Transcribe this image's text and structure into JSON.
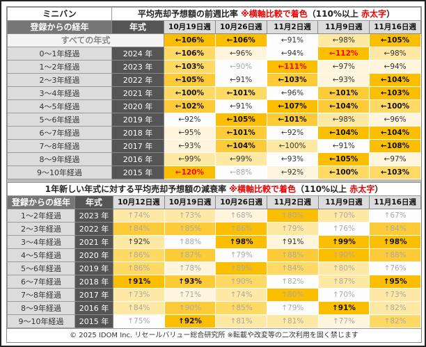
{
  "top": {
    "category": "ミニバン",
    "title": "平均売却予想額の前週比率 ",
    "note": "※横軸比較で着色",
    "paren_open": "（110%以上 ",
    "red_label": "赤太字",
    "paren_close": "）",
    "col_label": "登録からの経年",
    "col_year": "年式",
    "weeks": [
      "10月19日週",
      "10月26日週",
      "11月2日週",
      "11月9日週",
      "11月16日週"
    ],
    "all_label": "すべての年式",
    "all_cells": [
      {
        "v": "←106%",
        "l": 5,
        "s": "b"
      },
      {
        "v": "←106%",
        "l": 5,
        "s": "b"
      },
      {
        "v": "←91%",
        "l": 0,
        "s": "n"
      },
      {
        "v": "←98%",
        "l": 2,
        "s": "n"
      },
      {
        "v": "←105%",
        "l": 5,
        "s": "b"
      }
    ],
    "rows": [
      {
        "label": "0～1年経過",
        "year": "2024 年",
        "cells": [
          {
            "v": "←106%",
            "l": 3,
            "s": "b"
          },
          {
            "v": "←96%",
            "l": 1,
            "s": "n"
          },
          {
            "v": "←94%",
            "l": 0,
            "s": "n"
          },
          {
            "v": "←112%",
            "l": 5,
            "s": "r"
          },
          {
            "v": "←98%",
            "l": 2,
            "s": "n"
          }
        ]
      },
      {
        "label": "1～2年経過",
        "year": "2023 年",
        "cells": [
          {
            "v": "←103%",
            "l": 3,
            "s": "b"
          },
          {
            "v": "←90%",
            "l": 0,
            "s": "g"
          },
          {
            "v": "←111%",
            "l": 5,
            "s": "r"
          },
          {
            "v": "←97%",
            "l": 1,
            "s": "n"
          },
          {
            "v": "←94%",
            "l": 1,
            "s": "n"
          }
        ]
      },
      {
        "label": "2～3年経過",
        "year": "2022 年",
        "cells": [
          {
            "v": "←105%",
            "l": 4,
            "s": "b"
          },
          {
            "v": "←91%",
            "l": 0,
            "s": "n"
          },
          {
            "v": "←103%",
            "l": 4,
            "s": "b"
          },
          {
            "v": "←93%",
            "l": 1,
            "s": "n"
          },
          {
            "v": "←104%",
            "l": 5,
            "s": "b"
          }
        ]
      },
      {
        "label": "3～4年経過",
        "year": "2021 年",
        "cells": [
          {
            "v": "←100%",
            "l": 3,
            "s": "b"
          },
          {
            "v": "←101%",
            "l": 3,
            "s": "b"
          },
          {
            "v": "←96%",
            "l": 0,
            "s": "n"
          },
          {
            "v": "←101%",
            "l": 4,
            "s": "b"
          },
          {
            "v": "←103%",
            "l": 5,
            "s": "b"
          }
        ]
      },
      {
        "label": "4～5年経過",
        "year": "2020 年",
        "cells": [
          {
            "v": "←102%",
            "l": 4,
            "s": "b"
          },
          {
            "v": "←91%",
            "l": 0,
            "s": "n"
          },
          {
            "v": "←107%",
            "l": 5,
            "s": "b"
          },
          {
            "v": "←104%",
            "l": 4,
            "s": "b"
          },
          {
            "v": "←100%",
            "l": 3,
            "s": "b"
          }
        ]
      },
      {
        "label": "5～6年経過",
        "year": "2019 年",
        "cells": [
          {
            "v": "←92%",
            "l": 0,
            "s": "n"
          },
          {
            "v": "←105%",
            "l": 5,
            "s": "b"
          },
          {
            "v": "←101%",
            "l": 4,
            "s": "b"
          },
          {
            "v": "←98%",
            "l": 2,
            "s": "n"
          },
          {
            "v": "←96%",
            "l": 1,
            "s": "n"
          }
        ]
      },
      {
        "label": "6～7年経過",
        "year": "2018 年",
        "cells": [
          {
            "v": "←95%",
            "l": 1,
            "s": "n"
          },
          {
            "v": "←101%",
            "l": 4,
            "s": "b"
          },
          {
            "v": "←92%",
            "l": 0,
            "s": "n"
          },
          {
            "v": "←104%",
            "l": 5,
            "s": "b"
          },
          {
            "v": "←104%",
            "l": 5,
            "s": "b"
          }
        ]
      },
      {
        "label": "7～8年経過",
        "year": "2017 年",
        "cells": [
          {
            "v": "←93%",
            "l": 1,
            "s": "n"
          },
          {
            "v": "←104%",
            "l": 4,
            "s": "b"
          },
          {
            "v": "←100%",
            "l": 2,
            "s": "n"
          },
          {
            "v": "←91%",
            "l": 0,
            "s": "n"
          },
          {
            "v": "←108%",
            "l": 5,
            "s": "b"
          }
        ]
      },
      {
        "label": "8～9年経過",
        "year": "2016 年",
        "cells": [
          {
            "v": "←99%",
            "l": 2,
            "s": "n"
          },
          {
            "v": "←99%",
            "l": 2,
            "s": "n"
          },
          {
            "v": "←93%",
            "l": 0,
            "s": "n"
          },
          {
            "v": "←105%",
            "l": 5,
            "s": "b"
          },
          {
            "v": "←97%",
            "l": 1,
            "s": "n"
          }
        ]
      },
      {
        "label": "9～10年経過",
        "year": "2015 年",
        "cells": [
          {
            "v": "←120%",
            "l": 5,
            "s": "r"
          },
          {
            "v": "←88%",
            "l": 0,
            "s": "g"
          },
          {
            "v": "←92%",
            "l": 1,
            "s": "n"
          },
          {
            "v": "←100%",
            "l": 3,
            "s": "b"
          },
          {
            "v": "←103%",
            "l": 3,
            "s": "b"
          }
        ]
      }
    ]
  },
  "bottom": {
    "title": "1年新しい年式に対する平均売却予想額の減衰率 ",
    "note": "※横軸比較で着色",
    "paren_open": "（110%以上 ",
    "red_label": "赤太字",
    "paren_close": "）",
    "col_label": "登録からの経年",
    "col_year": "年式",
    "weeks": [
      "10月12日週",
      "10月19日週",
      "10月26日週",
      "11月2日週",
      "11月9日週",
      "11月16日週"
    ],
    "rows": [
      {
        "label": "1～2年経過",
        "year": "2023 年",
        "cells": [
          {
            "v": "↑74%",
            "l": 2,
            "s": "g"
          },
          {
            "v": "↑73%",
            "l": 2,
            "s": "g"
          },
          {
            "v": "↑68%",
            "l": 1,
            "s": "g"
          },
          {
            "v": "↑80%",
            "l": 5,
            "s": "g"
          },
          {
            "v": "↑70%",
            "l": 2,
            "s": "g"
          },
          {
            "v": "↑67%",
            "l": 0,
            "s": "g"
          }
        ]
      },
      {
        "label": "2～3年経過",
        "year": "2022 年",
        "cells": [
          {
            "v": "↑84%",
            "l": 4,
            "s": "g"
          },
          {
            "v": "↑85%",
            "l": 4,
            "s": "g"
          },
          {
            "v": "↑86%",
            "l": 5,
            "s": "g"
          },
          {
            "v": "↑79%",
            "l": 2,
            "s": "g"
          },
          {
            "v": "↑76%",
            "l": 0,
            "s": "g"
          },
          {
            "v": "↑84%",
            "l": 4,
            "s": "g"
          }
        ]
      },
      {
        "label": "3～4年経過",
        "year": "2021 年",
        "cells": [
          {
            "v": "↑92%",
            "l": 2,
            "s": "n"
          },
          {
            "v": "↑88%",
            "l": 0,
            "s": "g"
          },
          {
            "v": "↑98%",
            "l": 5,
            "s": "b"
          },
          {
            "v": "↑91%",
            "l": 1,
            "s": "n"
          },
          {
            "v": "↑99%",
            "l": 5,
            "s": "b"
          },
          {
            "v": "↑98%",
            "l": 5,
            "s": "b"
          }
        ]
      },
      {
        "label": "4～5年経過",
        "year": "2020 年",
        "cells": [
          {
            "v": "↑86%",
            "l": 3,
            "s": "g"
          },
          {
            "v": "↑87%",
            "l": 4,
            "s": "g"
          },
          {
            "v": "↑79%",
            "l": 0,
            "s": "g"
          },
          {
            "v": "↑88%",
            "l": 4,
            "s": "g"
          },
          {
            "v": "↑90%",
            "l": 5,
            "s": "g"
          },
          {
            "v": "↑88%",
            "l": 4,
            "s": "g"
          }
        ]
      },
      {
        "label": "5～6年経過",
        "year": "2019 年",
        "cells": [
          {
            "v": "↑86%",
            "l": 3,
            "s": "g"
          },
          {
            "v": "↑78%",
            "l": 1,
            "s": "g"
          },
          {
            "v": "↑89%",
            "l": 5,
            "s": "g"
          },
          {
            "v": "↑84%",
            "l": 3,
            "s": "g"
          },
          {
            "v": "↑80%",
            "l": 2,
            "s": "g"
          },
          {
            "v": "↑76%",
            "l": 0,
            "s": "g"
          }
        ]
      },
      {
        "label": "6～7年経過",
        "year": "2018 年",
        "cells": [
          {
            "v": "↑91%",
            "l": 5,
            "s": "b"
          },
          {
            "v": "↑93%",
            "l": 4,
            "s": "b"
          },
          {
            "v": "↑90%",
            "l": 3,
            "s": "g"
          },
          {
            "v": "↑82%",
            "l": 0,
            "s": "g"
          },
          {
            "v": "↑87%",
            "l": 2,
            "s": "g"
          },
          {
            "v": "↑95%",
            "l": 5,
            "s": "b"
          }
        ]
      },
      {
        "label": "7～8年経過",
        "year": "2017 年",
        "cells": [
          {
            "v": "↑73%",
            "l": 2,
            "s": "g"
          },
          {
            "v": "↑71%",
            "l": 1,
            "s": "g"
          },
          {
            "v": "↑74%",
            "l": 2,
            "s": "g"
          },
          {
            "v": "↑80%",
            "l": 5,
            "s": "g"
          },
          {
            "v": "↑70%",
            "l": 0,
            "s": "g"
          },
          {
            "v": "↑73%",
            "l": 2,
            "s": "g"
          }
        ]
      },
      {
        "label": "8～9年経過",
        "year": "2016 年",
        "cells": [
          {
            "v": "↑84%",
            "l": 2,
            "s": "g"
          },
          {
            "v": "↑90%",
            "l": 4,
            "s": "g"
          },
          {
            "v": "↑85%",
            "l": 3,
            "s": "g"
          },
          {
            "v": "↑79%",
            "l": 0,
            "s": "g"
          },
          {
            "v": "↑91%",
            "l": 5,
            "s": "b"
          },
          {
            "v": "↑82%",
            "l": 2,
            "s": "g"
          }
        ]
      },
      {
        "label": "9～10年経過",
        "year": "2015 年",
        "cells": [
          {
            "v": "↑75%",
            "l": 0,
            "s": "g"
          },
          {
            "v": "↑92%",
            "l": 5,
            "s": "b"
          },
          {
            "v": "↑81%",
            "l": 2,
            "s": "g"
          },
          {
            "v": "↑81%",
            "l": 2,
            "s": "g"
          },
          {
            "v": "↑77%",
            "l": 1,
            "s": "g"
          },
          {
            "v": "↑82%",
            "l": 3,
            "s": "g"
          }
        ]
      }
    ]
  },
  "footer": "© 2025 IDOM Inc. リセールバリュー総合研究所 ※転載や改変等の二次利用を固く禁じます"
}
